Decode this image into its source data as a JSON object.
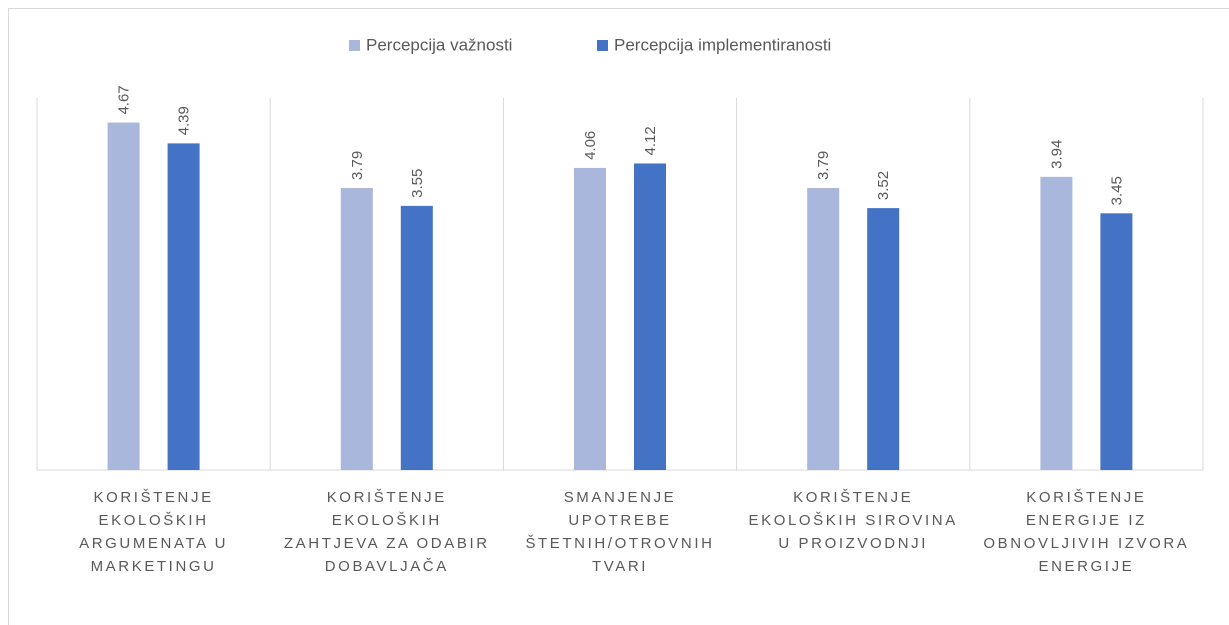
{
  "chart_data": {
    "type": "bar",
    "categories": [
      "KORIŠTENJE EKOLOŠKIH ARGUMENATA U MARKETINGU",
      "KORIŠTENJE EKOLOŠKIH ZAHTJEVA ZA ODABIR DOBAVLJAČA",
      "SMANJENJE UPOTREBE ŠTETNIH/OTROVNIH TVARI",
      "KORIŠTENJE EKOLOŠKIH SIROVINA U PROIZVODNJI",
      "KORIŠTENJE ENERGIJE IZ OBNOVLJIVIH IZVORA ENERGIJE"
    ],
    "series": [
      {
        "name": "Percepcija važnosti",
        "color": "#a9b7dc",
        "values": [
          4.67,
          3.79,
          4.06,
          3.79,
          3.94
        ]
      },
      {
        "name": "Percepcija implementiranosti",
        "color": "#4472c4",
        "values": [
          4.39,
          3.55,
          4.12,
          3.52,
          3.45
        ]
      }
    ],
    "ylim": [
      0,
      5
    ],
    "legend": "top"
  }
}
